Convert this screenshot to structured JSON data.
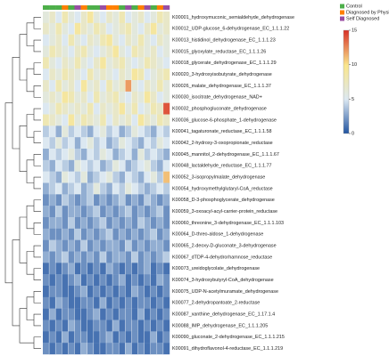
{
  "chart_data": {
    "type": "heatmap",
    "legend": [
      {
        "name": "Control",
        "color": "#4daf4a"
      },
      {
        "name": "Diagnosed by Physician",
        "color": "#ff7f00"
      },
      {
        "name": "Self Diagnosed",
        "color": "#984ea3"
      }
    ],
    "column_groups": [
      0,
      0,
      0,
      1,
      0,
      2,
      1,
      0,
      0,
      2,
      1,
      1,
      0,
      2,
      0,
      1,
      2,
      0,
      1,
      2
    ],
    "color_range": [
      0,
      15
    ],
    "color_ticks": [
      0,
      5,
      10,
      15
    ],
    "series": [
      {
        "name": "K00001_hydroxymuconic_semialdehyde_dehydrogenase",
        "values": [
          6,
          7,
          5,
          8,
          6,
          5,
          7,
          9,
          6,
          5,
          7,
          6,
          8,
          5,
          6,
          7,
          5,
          6,
          8,
          7
        ]
      },
      {
        "name": "K00012_UDP-glucose_6-dehydrogenase_EC_1.1.1.22",
        "values": [
          7,
          6,
          8,
          6,
          5,
          9,
          7,
          6,
          8,
          7,
          5,
          6,
          7,
          8,
          6,
          5,
          7,
          9,
          6,
          7
        ]
      },
      {
        "name": "K00013_histidinol_dehydrogenase_EC_1.1.1.23",
        "values": [
          5,
          6,
          7,
          5,
          8,
          6,
          5,
          7,
          6,
          8,
          9,
          6,
          5,
          7,
          6,
          8,
          6,
          5,
          7,
          6
        ]
      },
      {
        "name": "K00015_glyoxylate_reductase_EC_1.1.1.26",
        "values": [
          6,
          8,
          7,
          6,
          5,
          7,
          8,
          6,
          5,
          6,
          7,
          9,
          6,
          5,
          8,
          7,
          6,
          7,
          5,
          6
        ]
      },
      {
        "name": "K00018_glycerate_dehydrogenase_EC_1.1.1.29",
        "values": [
          8,
          6,
          5,
          7,
          6,
          8,
          6,
          5,
          7,
          9,
          6,
          7,
          8,
          6,
          5,
          6,
          8,
          7,
          6,
          5
        ]
      },
      {
        "name": "K00020_3-hydroxyisobutyrate_dehydrogenase",
        "values": [
          5,
          7,
          6,
          8,
          7,
          6,
          5,
          8,
          6,
          7,
          6,
          5,
          7,
          6,
          9,
          8,
          5,
          6,
          7,
          8
        ]
      },
      {
        "name": "K00026_malate_dehydrogenase_EC_1.1.1.37",
        "values": [
          7,
          5,
          8,
          6,
          7,
          5,
          9,
          6,
          7,
          5,
          8,
          6,
          7,
          12,
          6,
          5,
          7,
          6,
          8,
          6
        ]
      },
      {
        "name": "K00030_isocitrate_dehydrogenase_NAD+",
        "values": [
          6,
          7,
          6,
          9,
          8,
          6,
          7,
          5,
          8,
          6,
          7,
          8,
          6,
          5,
          7,
          6,
          9,
          7,
          5,
          6
        ]
      },
      {
        "name": "K00032_phosphogluconate_dehydrogenase",
        "values": [
          5,
          6,
          8,
          7,
          6,
          7,
          6,
          8,
          5,
          7,
          6,
          7,
          9,
          6,
          8,
          5,
          6,
          8,
          7,
          14
        ]
      },
      {
        "name": "K00036_glucose-6-phosphate_1-dehydrogenase",
        "values": [
          8,
          7,
          6,
          5,
          9,
          6,
          8,
          7,
          6,
          8,
          5,
          7,
          6,
          7,
          5,
          9,
          7,
          6,
          8,
          7
        ]
      },
      {
        "name": "K00041_tagaturonate_reductase_EC_1.1.1.58",
        "values": [
          4,
          5,
          3,
          6,
          4,
          5,
          4,
          3,
          5,
          6,
          4,
          5,
          3,
          4,
          6,
          5,
          4,
          3,
          5,
          4
        ]
      },
      {
        "name": "K00042_2-hydroxy-3-oxopropionate_reductase",
        "values": [
          5,
          4,
          6,
          4,
          5,
          3,
          5,
          6,
          4,
          5,
          3,
          4,
          6,
          5,
          4,
          3,
          5,
          4,
          6,
          5
        ]
      },
      {
        "name": "K00045_mannitol_2-dehydrogenase_EC_1.1.1.67",
        "values": [
          3,
          5,
          4,
          5,
          6,
          4,
          3,
          5,
          4,
          6,
          5,
          3,
          4,
          5,
          3,
          6,
          4,
          5,
          4,
          3
        ]
      },
      {
        "name": "K00048_lactaldehyde_reductase_EC_1.1.1.77",
        "values": [
          4,
          3,
          5,
          4,
          3,
          6,
          5,
          4,
          5,
          3,
          4,
          6,
          5,
          3,
          4,
          5,
          6,
          4,
          3,
          5
        ]
      },
      {
        "name": "K00052_3-isopropylmalate_dehydrogenase",
        "values": [
          5,
          4,
          3,
          6,
          5,
          4,
          6,
          3,
          4,
          5,
          6,
          4,
          3,
          5,
          4,
          3,
          5,
          6,
          4,
          11
        ]
      },
      {
        "name": "K00054_hydroxymethylglutaryl-CoA_reductase",
        "values": [
          3,
          4,
          5,
          3,
          4,
          5,
          3,
          4,
          6,
          4,
          3,
          5,
          4,
          6,
          5,
          4,
          3,
          4,
          5,
          4
        ]
      },
      {
        "name": "K00058_D-3-phosphoglycerate_dehydrogenase",
        "values": [
          2,
          3,
          2,
          4,
          3,
          2,
          3,
          4,
          2,
          3,
          2,
          3,
          4,
          2,
          3,
          2,
          4,
          3,
          2,
          3
        ]
      },
      {
        "name": "K00059_3-oxoacyl-acyl-carrier-protein_reductase",
        "values": [
          3,
          2,
          4,
          2,
          3,
          3,
          2,
          3,
          4,
          2,
          3,
          2,
          3,
          4,
          2,
          3,
          2,
          3,
          4,
          2
        ]
      },
      {
        "name": "K00060_threonine_3-dehydrogenase_EC_1.1.1.103",
        "values": [
          2,
          3,
          3,
          2,
          4,
          2,
          3,
          2,
          3,
          4,
          2,
          3,
          2,
          3,
          2,
          4,
          3,
          2,
          3,
          2
        ]
      },
      {
        "name": "K00064_D-threo-aldose_1-dehydrogenase",
        "values": [
          3,
          2,
          2,
          3,
          2,
          4,
          2,
          3,
          2,
          3,
          4,
          2,
          3,
          2,
          3,
          2,
          3,
          4,
          2,
          3
        ]
      },
      {
        "name": "K00065_2-deoxy-D-gluconate_3-dehydrogenase",
        "values": [
          2,
          4,
          3,
          2,
          3,
          2,
          4,
          2,
          3,
          2,
          3,
          3,
          2,
          4,
          2,
          3,
          2,
          3,
          3,
          2
        ]
      },
      {
        "name": "K00067_dTDP-4-dehydrorhamnose_reductase",
        "values": [
          3,
          2,
          3,
          4,
          2,
          3,
          2,
          3,
          2,
          4,
          2,
          3,
          3,
          2,
          4,
          2,
          3,
          2,
          3,
          4
        ]
      },
      {
        "name": "K00073_ureidoglycolate_dehydrogenase",
        "values": [
          1,
          2,
          1,
          2,
          3,
          1,
          2,
          1,
          2,
          1,
          3,
          2,
          1,
          2,
          1,
          2,
          3,
          1,
          2,
          1
        ]
      },
      {
        "name": "K00074_3-hydroxybutyryl-CoA_dehydrogenase",
        "values": [
          2,
          1,
          2,
          1,
          2,
          3,
          1,
          2,
          1,
          2,
          1,
          2,
          3,
          1,
          2,
          1,
          2,
          1,
          3,
          2
        ]
      },
      {
        "name": "K00075_UDP-N-acetylmuramate_dehydrogenase",
        "values": [
          1,
          2,
          2,
          1,
          1,
          2,
          3,
          1,
          2,
          1,
          2,
          1,
          2,
          1,
          3,
          2,
          1,
          2,
          1,
          2
        ]
      },
      {
        "name": "K00077_2-dehydropantoate_2-reductase",
        "values": [
          2,
          1,
          3,
          2,
          1,
          1,
          2,
          2,
          1,
          3,
          1,
          2,
          1,
          2,
          1,
          2,
          2,
          1,
          2,
          1
        ]
      },
      {
        "name": "K00087_xanthine_dehydrogenase_EC_1.17.1.4",
        "values": [
          1,
          3,
          1,
          2,
          2,
          1,
          1,
          2,
          3,
          1,
          2,
          1,
          2,
          2,
          1,
          3,
          1,
          2,
          1,
          2
        ]
      },
      {
        "name": "K00088_IMP_dehydrogenase_EC_1.1.1.205",
        "values": [
          2,
          1,
          2,
          1,
          3,
          2,
          1,
          1,
          2,
          2,
          1,
          3,
          1,
          2,
          2,
          1,
          2,
          1,
          2,
          1
        ]
      },
      {
        "name": "K00090_gluconate_2-dehydrogenase_EC_1.1.1.215",
        "values": [
          1,
          2,
          1,
          3,
          1,
          2,
          2,
          1,
          1,
          2,
          3,
          1,
          2,
          1,
          2,
          1,
          1,
          3,
          1,
          2
        ]
      },
      {
        "name": "K00091_dihydroflavonol-4-reductase_EC_1.1.1.219",
        "values": [
          2,
          1,
          2,
          1,
          2,
          1,
          3,
          2,
          1,
          1,
          2,
          2,
          1,
          3,
          1,
          2,
          1,
          2,
          2,
          1
        ]
      }
    ]
  }
}
